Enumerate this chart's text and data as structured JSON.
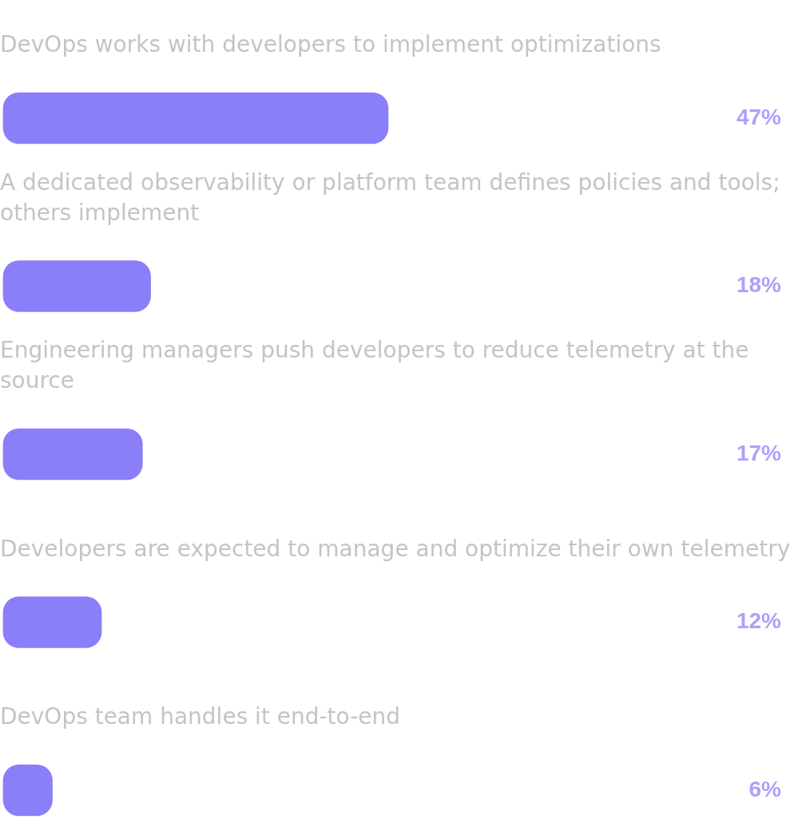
{
  "chart_data": {
    "type": "bar",
    "orientation": "horizontal",
    "categories": [
      "DevOps works with developers to implement optimizations",
      "A dedicated observability or platform team defines policies and tools; others implement",
      "Engineering managers push developers to reduce telemetry at the source",
      "Developers are expected to manage and optimize their own telemetry",
      "DevOps team handles it end-to-end"
    ],
    "values": [
      47,
      18,
      17,
      12,
      6
    ],
    "value_labels": [
      "47%",
      "18%",
      "17%",
      "12%",
      "6%"
    ],
    "color": "#8b7ff9",
    "legend": false,
    "tick_labels": false
  }
}
